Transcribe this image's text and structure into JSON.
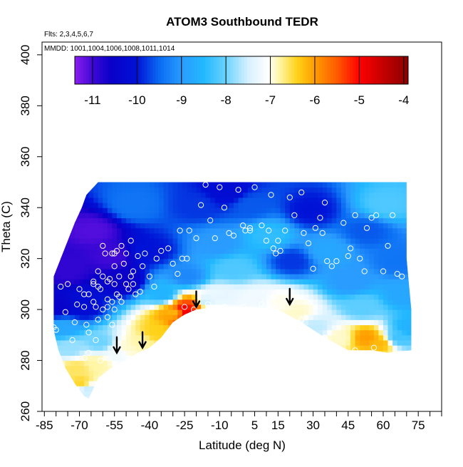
{
  "chart_data": {
    "type": "heatmap",
    "title": "ATOM3 Southbound TEDR",
    "annotations": {
      "flights": "Flts: 2,3,4,5,6,7",
      "dates": "MMDD: 1001,1004,1006,1008,1011,1014"
    },
    "xlabel": "Latitude (deg N)",
    "ylabel": "Theta (C)",
    "xlim": [
      -86,
      85
    ],
    "ylim": [
      260,
      405
    ],
    "x_ticks": [
      -85,
      -70,
      -55,
      -40,
      -25,
      -10,
      5,
      15,
      30,
      45,
      60,
      75
    ],
    "x_minor_ticks": [
      -80,
      -75,
      -65,
      -60,
      -50,
      -45,
      -35,
      -30,
      -20,
      -15,
      -5,
      0,
      10,
      20,
      25,
      35,
      40,
      50,
      55,
      65,
      70,
      80,
      85
    ],
    "y_ticks": [
      260,
      280,
      300,
      320,
      340,
      360,
      380,
      400
    ],
    "colorbar": {
      "ticks": [
        -11,
        -10,
        -9,
        -8,
        -7,
        -6,
        -5,
        -4
      ],
      "range": [
        -11.4,
        -3.9
      ],
      "stops": [
        {
          "v": -11.4,
          "c": "#8b1ff0"
        },
        {
          "v": -11.0,
          "c": "#3f08d6"
        },
        {
          "v": -10.6,
          "c": "#0a00c8"
        },
        {
          "v": -10.0,
          "c": "#0012d6"
        },
        {
          "v": -9.5,
          "c": "#0a6bf2"
        },
        {
          "v": -9.0,
          "c": "#2a9bff"
        },
        {
          "v": -8.5,
          "c": "#22b8ff"
        },
        {
          "v": -8.0,
          "c": "#6cd3ff"
        },
        {
          "v": -7.5,
          "c": "#d6f1ff"
        },
        {
          "v": -7.05,
          "c": "#ffffff"
        },
        {
          "v": -6.8,
          "c": "#fff6a8"
        },
        {
          "v": -6.4,
          "c": "#ffd21a"
        },
        {
          "v": -6.0,
          "c": "#ff9d00"
        },
        {
          "v": -5.5,
          "c": "#ff5a00"
        },
        {
          "v": -5.0,
          "c": "#ff0000"
        },
        {
          "v": -4.5,
          "c": "#c80000"
        },
        {
          "v": -3.9,
          "c": "#8c0000"
        }
      ]
    },
    "domain_top": [
      [
        -81,
        313
      ],
      [
        -78,
        320
      ],
      [
        -75,
        327
      ],
      [
        -72,
        334
      ],
      [
        -69,
        340
      ],
      [
        -67,
        345
      ],
      [
        -64,
        348
      ],
      [
        -62,
        350
      ],
      [
        70,
        350
      ]
    ],
    "domain_bottom": [
      [
        -81,
        292
      ],
      [
        -79,
        284
      ],
      [
        -76,
        277
      ],
      [
        -72,
        271
      ],
      [
        -68,
        266
      ],
      [
        -66,
        265
      ],
      [
        -62,
        273
      ],
      [
        -58,
        276
      ],
      [
        -55,
        278
      ],
      [
        -50,
        280
      ],
      [
        -45,
        283
      ],
      [
        -40,
        285
      ],
      [
        -35,
        289
      ],
      [
        -30,
        295
      ],
      [
        -25,
        298
      ],
      [
        -20,
        300
      ],
      [
        -10,
        301
      ],
      [
        5,
        301
      ],
      [
        15,
        300
      ],
      [
        25,
        295
      ],
      [
        35,
        289
      ],
      [
        45,
        284
      ],
      [
        55,
        284
      ],
      [
        62,
        283
      ],
      [
        72,
        284
      ]
    ],
    "domain_right": [
      [
        70,
        350
      ],
      [
        70,
        320
      ],
      [
        72,
        300
      ],
      [
        72,
        284
      ]
    ],
    "field_cells": [
      {
        "lat": -80,
        "theta": 300,
        "v": -10.5
      },
      {
        "lat": -78,
        "theta": 292,
        "v": -8.8
      },
      {
        "lat": -75,
        "theta": 284,
        "v": -7.8
      },
      {
        "lat": -72,
        "theta": 276,
        "v": -6.6
      },
      {
        "lat": -70,
        "theta": 270,
        "v": -6.4
      },
      {
        "lat": -68,
        "theta": 268,
        "v": -7.6
      },
      {
        "lat": -64,
        "theta": 278,
        "v": -6.8
      },
      {
        "lat": -62,
        "theta": 286,
        "v": -8.0
      },
      {
        "lat": -55,
        "theta": 282,
        "v": -7.2
      },
      {
        "lat": -50,
        "theta": 284,
        "v": -6.9
      },
      {
        "lat": -45,
        "theta": 286,
        "v": -6.8
      },
      {
        "lat": -38,
        "theta": 290,
        "v": -6.4
      },
      {
        "lat": -30,
        "theta": 298,
        "v": -6.2
      },
      {
        "lat": -26,
        "theta": 299,
        "v": -4.8
      },
      {
        "lat": -23,
        "theta": 296,
        "v": -4.4
      },
      {
        "lat": -22,
        "theta": 301,
        "v": -5.3
      },
      {
        "lat": -18,
        "theta": 302,
        "v": -7.6
      },
      {
        "lat": -10,
        "theta": 304,
        "v": -7.3
      },
      {
        "lat": 5,
        "theta": 303,
        "v": -7.2
      },
      {
        "lat": 15,
        "theta": 302,
        "v": -7.0
      },
      {
        "lat": 22,
        "theta": 298,
        "v": -6.9
      },
      {
        "lat": 30,
        "theta": 292,
        "v": -7.6
      },
      {
        "lat": 40,
        "theta": 288,
        "v": -6.9
      },
      {
        "lat": 52,
        "theta": 288,
        "v": -6.0
      },
      {
        "lat": 58,
        "theta": 286,
        "v": -6.2
      },
      {
        "lat": 65,
        "theta": 288,
        "v": -8.3
      },
      {
        "lat": 70,
        "theta": 292,
        "v": -8.6
      },
      {
        "lat": -76,
        "theta": 315,
        "v": -10.9
      },
      {
        "lat": -65,
        "theta": 330,
        "v": -11.1
      },
      {
        "lat": -58,
        "theta": 320,
        "v": -11.0
      },
      {
        "lat": -52,
        "theta": 310,
        "v": -10.6
      },
      {
        "lat": -48,
        "theta": 340,
        "v": -9.4
      },
      {
        "lat": -40,
        "theta": 322,
        "v": -10.0
      },
      {
        "lat": -35,
        "theta": 305,
        "v": -8.6
      },
      {
        "lat": -25,
        "theta": 312,
        "v": -9.2
      },
      {
        "lat": -20,
        "theta": 340,
        "v": -9.8
      },
      {
        "lat": -12,
        "theta": 325,
        "v": -9.0
      },
      {
        "lat": -5,
        "theta": 315,
        "v": -8.2
      },
      {
        "lat": 2,
        "theta": 340,
        "v": -9.6
      },
      {
        "lat": 10,
        "theta": 328,
        "v": -8.4
      },
      {
        "lat": 20,
        "theta": 318,
        "v": -9.8
      },
      {
        "lat": 28,
        "theta": 338,
        "v": -10.0
      },
      {
        "lat": 35,
        "theta": 322,
        "v": -8.8
      },
      {
        "lat": 45,
        "theta": 310,
        "v": -9.0
      },
      {
        "lat": 52,
        "theta": 330,
        "v": -9.6
      },
      {
        "lat": 60,
        "theta": 340,
        "v": -8.2
      },
      {
        "lat": 65,
        "theta": 318,
        "v": -9.4
      },
      {
        "lat": 68,
        "theta": 305,
        "v": -8.8
      },
      {
        "lat": 50,
        "theta": 300,
        "v": -8.1
      },
      {
        "lat": -8,
        "theta": 345,
        "v": -10.2
      },
      {
        "lat": -70,
        "theta": 300,
        "v": -10.2
      }
    ],
    "observations": [
      [
        -81,
        293
      ],
      [
        -80,
        292
      ],
      [
        -78,
        309
      ],
      [
        -75,
        310
      ],
      [
        -72,
        295
      ],
      [
        -70,
        308
      ],
      [
        -68,
        306
      ],
      [
        -68,
        301
      ],
      [
        -67,
        294
      ],
      [
        -66,
        291
      ],
      [
        -66,
        306
      ],
      [
        -64,
        303
      ],
      [
        -64,
        311
      ],
      [
        -63,
        301
      ],
      [
        -62,
        296
      ],
      [
        -62,
        315
      ],
      [
        -61,
        308
      ],
      [
        -60,
        300
      ],
      [
        -60,
        313
      ],
      [
        -59,
        322
      ],
      [
        -58,
        301
      ],
      [
        -58,
        304
      ],
      [
        -57,
        312
      ],
      [
        -56,
        322
      ],
      [
        -55,
        310
      ],
      [
        -55,
        317
      ],
      [
        -54,
        323
      ],
      [
        -53,
        305
      ],
      [
        -53,
        313
      ],
      [
        -52,
        325
      ],
      [
        -52,
        303
      ],
      [
        -51,
        318
      ],
      [
        -50,
        322
      ],
      [
        -50,
        310
      ],
      [
        -49,
        308
      ],
      [
        -48,
        313
      ],
      [
        -47,
        310
      ],
      [
        -46,
        306
      ],
      [
        -45,
        321
      ],
      [
        -43,
        317
      ],
      [
        -42,
        322
      ],
      [
        -40,
        313
      ],
      [
        -38,
        309
      ],
      [
        -37,
        320
      ],
      [
        -35,
        323
      ],
      [
        -32,
        324
      ],
      [
        -30,
        318
      ],
      [
        -28,
        314
      ],
      [
        -27,
        331
      ],
      [
        -26,
        320
      ],
      [
        -24,
        320
      ],
      [
        -23,
        331
      ],
      [
        -20,
        328
      ],
      [
        -18,
        341
      ],
      [
        -16,
        349
      ],
      [
        -14,
        335
      ],
      [
        -12,
        328
      ],
      [
        -10,
        348
      ],
      [
        -8,
        340
      ],
      [
        -6,
        330
      ],
      [
        -4,
        329
      ],
      [
        -2,
        347
      ],
      [
        0,
        333
      ],
      [
        1,
        331
      ],
      [
        3,
        332
      ],
      [
        3,
        331
      ],
      [
        5,
        348
      ],
      [
        8,
        333
      ],
      [
        10,
        327
      ],
      [
        11,
        331
      ],
      [
        12,
        345
      ],
      [
        13,
        324
      ],
      [
        14,
        322
      ],
      [
        15,
        327
      ],
      [
        16,
        323
      ],
      [
        18,
        331
      ],
      [
        20,
        344
      ],
      [
        22,
        337
      ],
      [
        25,
        346
      ],
      [
        26,
        330
      ],
      [
        28,
        326
      ],
      [
        30,
        316
      ],
      [
        31,
        332
      ],
      [
        33,
        336
      ],
      [
        34,
        330
      ],
      [
        35,
        342
      ],
      [
        36,
        319
      ],
      [
        38,
        317
      ],
      [
        40,
        319
      ],
      [
        43,
        334
      ],
      [
        45,
        321
      ],
      [
        46,
        324
      ],
      [
        48,
        337
      ],
      [
        50,
        320
      ],
      [
        52,
        315
      ],
      [
        53,
        332
      ],
      [
        55,
        336
      ],
      [
        57,
        337
      ],
      [
        60,
        315
      ],
      [
        62,
        325
      ],
      [
        64,
        337
      ],
      [
        66,
        314
      ],
      [
        68,
        313
      ],
      [
        -64,
        310
      ],
      [
        -58,
        297
      ],
      [
        -56,
        294
      ],
      [
        -55,
        300
      ],
      [
        -47,
        315
      ],
      [
        -63,
        288
      ],
      [
        -66,
        283
      ],
      [
        -61,
        280
      ],
      [
        -68,
        281
      ],
      [
        -73,
        288
      ],
      [
        -25,
        301
      ],
      [
        -21,
        300
      ],
      [
        -15,
        302
      ],
      [
        -8,
        301
      ],
      [
        0,
        301
      ],
      [
        8,
        302
      ],
      [
        15,
        301
      ],
      [
        25,
        296
      ],
      [
        35,
        289
      ],
      [
        48,
        284
      ],
      [
        56,
        285
      ],
      [
        -44,
        307
      ],
      [
        -58,
        311
      ],
      [
        -62,
        309
      ],
      [
        -56,
        303
      ],
      [
        -54,
        306
      ],
      [
        -71,
        302
      ],
      [
        -76,
        299
      ],
      [
        -48,
        327
      ],
      [
        -55,
        322
      ],
      [
        -60,
        325
      ]
    ],
    "arrows": [
      {
        "lat": -54,
        "theta": 283
      },
      {
        "lat": -43,
        "theta": 285
      },
      {
        "lat": -20,
        "theta": 301
      },
      {
        "lat": 20,
        "theta": 302
      }
    ]
  },
  "colors": {
    "axis": "#000000",
    "marker": "#ffffff",
    "purple_marker": "#c080f0"
  }
}
